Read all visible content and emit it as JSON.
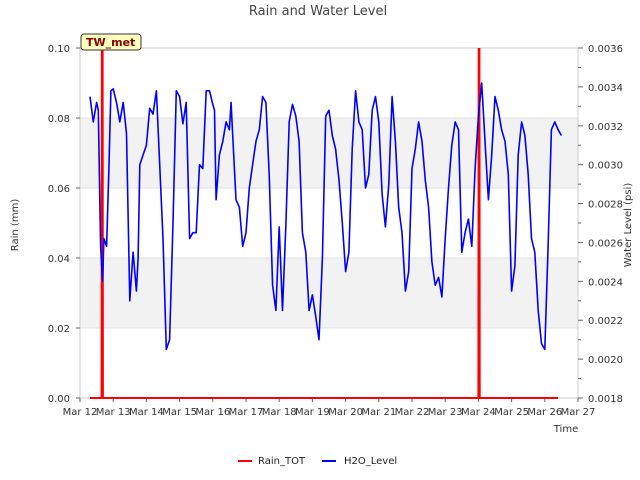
{
  "chart_data": {
    "type": "line",
    "title": "Rain and Water Level",
    "site_label": "TW_met",
    "xlabel": "Time",
    "ylabel_left": "Rain (mm)",
    "ylabel_right": "Water Level (psi)",
    "x_tick_labels": [
      "Mar 12",
      "Mar 13",
      "Mar 14",
      "Mar 15",
      "Mar 16",
      "Mar 17",
      "Mar 18",
      "Mar 19",
      "Mar 20",
      "Mar 21",
      "Mar 22",
      "Mar 23",
      "Mar 24",
      "Mar 25",
      "Mar 26",
      "Mar 27"
    ],
    "xlim_days": [
      12,
      27
    ],
    "ylim_left": [
      0.0,
      0.1
    ],
    "ylim_right": [
      0.0018,
      0.0036
    ],
    "y_left_ticks": [
      "0.00",
      "0.02",
      "0.04",
      "0.06",
      "0.08",
      "0.10"
    ],
    "y_right_ticks": [
      "0.0018",
      "0.0020",
      "0.0022",
      "0.0024",
      "0.0026",
      "0.0028",
      "0.0030",
      "0.0032",
      "0.0034",
      "0.0036"
    ],
    "band_shading": true,
    "legend_position": "bottom-center",
    "colors": {
      "Rain_TOT": "#ff0000",
      "H2O_Level": "#0000ff",
      "band": "#f2f2f2",
      "badge_fill": "#ffffc0"
    },
    "series": [
      {
        "name": "Rain_TOT",
        "axis": "left",
        "x_days": [
          12.3,
          12.65,
          12.66,
          12.67,
          12.68,
          12.69,
          12.7,
          24.0,
          24.01,
          24.02,
          24.03,
          24.04,
          26.4
        ],
        "values": [
          0.0,
          0.0,
          0.1,
          0.0,
          0.1,
          0.0,
          0.0,
          0.0,
          0.1,
          0.0,
          0.1,
          0.0,
          0.0
        ]
      },
      {
        "name": "H2O_Level",
        "axis": "right",
        "x_days": [
          12.3,
          12.4,
          12.5,
          12.55,
          12.62,
          12.68,
          12.72,
          12.8,
          12.87,
          12.93,
          13.0,
          13.1,
          13.2,
          13.3,
          13.4,
          13.5,
          13.6,
          13.7,
          13.75,
          13.8,
          13.9,
          14.0,
          14.1,
          14.2,
          14.3,
          14.4,
          14.5,
          14.6,
          14.7,
          14.8,
          14.9,
          15.0,
          15.1,
          15.2,
          15.3,
          15.4,
          15.5,
          15.6,
          15.7,
          15.8,
          15.9,
          16.0,
          16.05,
          16.1,
          16.2,
          16.3,
          16.4,
          16.5,
          16.55,
          16.6,
          16.7,
          16.8,
          16.9,
          17.0,
          17.1,
          17.2,
          17.3,
          17.4,
          17.5,
          17.6,
          17.7,
          17.8,
          17.9,
          18.0,
          18.1,
          18.2,
          18.3,
          18.4,
          18.5,
          18.6,
          18.7,
          18.8,
          18.9,
          19.0,
          19.1,
          19.2,
          19.3,
          19.4,
          19.5,
          19.6,
          19.7,
          19.8,
          19.9,
          20.0,
          20.1,
          20.2,
          20.3,
          20.4,
          20.5,
          20.6,
          20.7,
          20.8,
          20.9,
          21.0,
          21.1,
          21.2,
          21.3,
          21.4,
          21.5,
          21.6,
          21.7,
          21.8,
          21.9,
          22.0,
          22.1,
          22.2,
          22.3,
          22.4,
          22.5,
          22.6,
          22.7,
          22.8,
          22.9,
          23.0,
          23.1,
          23.2,
          23.3,
          23.4,
          23.5,
          23.6,
          23.7,
          23.8,
          23.9,
          24.0,
          24.1,
          24.2,
          24.3,
          24.4,
          24.5,
          24.6,
          24.7,
          24.8,
          24.9,
          25.0,
          25.1,
          25.2,
          25.3,
          25.4,
          25.5,
          25.6,
          25.7,
          25.8,
          25.9,
          26.0,
          26.1,
          26.2,
          26.3,
          26.4,
          26.5
        ],
        "values": [
          0.00335,
          0.00322,
          0.00332,
          0.00328,
          0.00258,
          0.0024,
          0.00262,
          0.00258,
          0.00298,
          0.00338,
          0.00339,
          0.00332,
          0.00322,
          0.00332,
          0.00316,
          0.0023,
          0.00255,
          0.00235,
          0.00252,
          0.003,
          0.00305,
          0.0031,
          0.00329,
          0.00326,
          0.00338,
          0.003,
          0.00262,
          0.00205,
          0.0021,
          0.0027,
          0.00338,
          0.00335,
          0.00321,
          0.00332,
          0.00262,
          0.00265,
          0.00265,
          0.003,
          0.00298,
          0.00338,
          0.00338,
          0.00331,
          0.00328,
          0.00282,
          0.00305,
          0.00312,
          0.00322,
          0.00318,
          0.00332,
          0.00315,
          0.00282,
          0.00278,
          0.00258,
          0.00265,
          0.00288,
          0.003,
          0.00312,
          0.00318,
          0.00335,
          0.00332,
          0.00295,
          0.00238,
          0.00225,
          0.00268,
          0.00225,
          0.00268,
          0.00322,
          0.00331,
          0.00325,
          0.00312,
          0.00265,
          0.00255,
          0.00225,
          0.00233,
          0.00222,
          0.0021,
          0.00252,
          0.00325,
          0.00328,
          0.00315,
          0.00308,
          0.00292,
          0.0027,
          0.00245,
          0.00255,
          0.00308,
          0.00338,
          0.00322,
          0.00318,
          0.00288,
          0.00295,
          0.00328,
          0.00335,
          0.00322,
          0.00285,
          0.00268,
          0.0029,
          0.00335,
          0.00312,
          0.00278,
          0.00265,
          0.00235,
          0.00245,
          0.00298,
          0.00308,
          0.00322,
          0.00312,
          0.00292,
          0.00278,
          0.0025,
          0.00238,
          0.00242,
          0.00232,
          0.00262,
          0.00288,
          0.0031,
          0.00322,
          0.00318,
          0.00255,
          0.00265,
          0.00272,
          0.00258,
          0.00298,
          0.00325,
          0.00342,
          0.00312,
          0.00282,
          0.00305,
          0.00335,
          0.00328,
          0.00318,
          0.00312,
          0.00295,
          0.00235,
          0.00248,
          0.00305,
          0.00322,
          0.00315,
          0.00295,
          0.00262,
          0.00255,
          0.00225,
          0.00208,
          0.00205,
          0.00258,
          0.00318,
          0.00322,
          0.00318,
          0.00315
        ]
      }
    ]
  }
}
